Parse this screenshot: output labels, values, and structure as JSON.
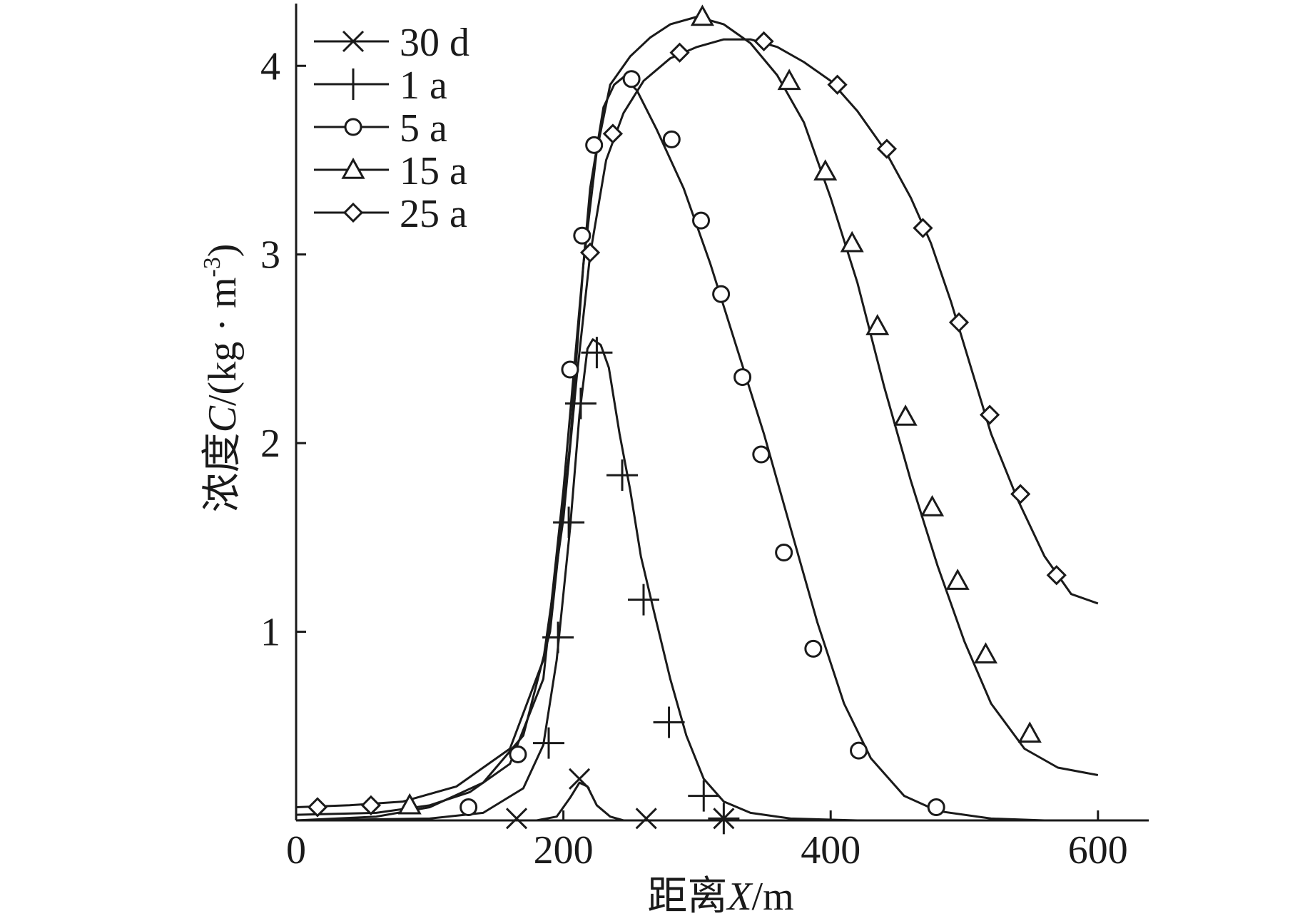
{
  "chart_data": {
    "type": "line",
    "title": "",
    "xlabel_prefix": "距离",
    "xlabel_var": "X",
    "xlabel_unit": "/m",
    "ylabel_prefix": "浓度",
    "ylabel_var": "C",
    "ylabel_unit": "/(kg · m",
    "ylabel_exp": "-3",
    "ylabel_close": ")",
    "xlim": [
      0,
      630
    ],
    "ylim": [
      0,
      4.33
    ],
    "xticks": [
      0,
      200,
      400,
      600
    ],
    "xtick_labels": [
      "0",
      "200",
      "400",
      "600"
    ],
    "yticks": [
      1,
      2,
      3,
      4
    ],
    "ytick_labels": [
      "1",
      "2",
      "3",
      "4"
    ],
    "grid": false,
    "legend_position": "top-left",
    "series": [
      {
        "name": "30 d",
        "marker": "x",
        "line": [
          [
            0,
            0
          ],
          [
            140,
            0
          ],
          [
            180,
            0
          ],
          [
            195,
            0.02
          ],
          [
            205,
            0.12
          ],
          [
            212,
            0.2
          ],
          [
            218,
            0.18
          ],
          [
            225,
            0.08
          ],
          [
            235,
            0.02
          ],
          [
            245,
            0.0
          ],
          [
            300,
            0
          ],
          [
            600,
            0
          ]
        ],
        "markers": [
          [
            165,
            0.01
          ],
          [
            212,
            0.22
          ],
          [
            262,
            0.01
          ],
          [
            320,
            0.01
          ]
        ]
      },
      {
        "name": "1 a",
        "marker": "plus",
        "line": [
          [
            0,
            0
          ],
          [
            100,
            0.01
          ],
          [
            140,
            0.04
          ],
          [
            170,
            0.17
          ],
          [
            185,
            0.4
          ],
          [
            195,
            0.85
          ],
          [
            205,
            1.55
          ],
          [
            212,
            2.15
          ],
          [
            218,
            2.5
          ],
          [
            222,
            2.55
          ],
          [
            228,
            2.52
          ],
          [
            234,
            2.4
          ],
          [
            242,
            2.05
          ],
          [
            250,
            1.75
          ],
          [
            258,
            1.4
          ],
          [
            268,
            1.1
          ],
          [
            280,
            0.75
          ],
          [
            292,
            0.45
          ],
          [
            305,
            0.22
          ],
          [
            320,
            0.1
          ],
          [
            340,
            0.04
          ],
          [
            370,
            0.01
          ],
          [
            420,
            0
          ],
          [
            600,
            0
          ]
        ],
        "markers": [
          [
            189,
            0.41
          ],
          [
            196,
            0.97
          ],
          [
            204,
            1.58
          ],
          [
            213,
            2.21
          ],
          [
            225,
            2.48
          ],
          [
            244,
            1.83
          ],
          [
            260,
            1.17
          ],
          [
            279,
            0.52
          ],
          [
            305,
            0.13
          ],
          [
            320,
            0.01
          ]
        ]
      },
      {
        "name": "5 a",
        "marker": "circle",
        "line": [
          [
            0,
            0.03
          ],
          [
            60,
            0.04
          ],
          [
            100,
            0.08
          ],
          [
            130,
            0.15
          ],
          [
            160,
            0.3
          ],
          [
            185,
            0.75
          ],
          [
            200,
            1.75
          ],
          [
            210,
            2.55
          ],
          [
            220,
            3.35
          ],
          [
            230,
            3.78
          ],
          [
            238,
            3.9
          ],
          [
            245,
            3.94
          ],
          [
            255,
            3.87
          ],
          [
            270,
            3.66
          ],
          [
            290,
            3.35
          ],
          [
            310,
            2.95
          ],
          [
            330,
            2.5
          ],
          [
            350,
            2.05
          ],
          [
            370,
            1.55
          ],
          [
            390,
            1.05
          ],
          [
            410,
            0.62
          ],
          [
            430,
            0.33
          ],
          [
            455,
            0.13
          ],
          [
            480,
            0.05
          ],
          [
            520,
            0.01
          ],
          [
            560,
            0
          ],
          [
            600,
            0
          ]
        ],
        "markers": [
          [
            129,
            0.07
          ],
          [
            166,
            0.35
          ],
          [
            205,
            2.39
          ],
          [
            214,
            3.1
          ],
          [
            223,
            3.58
          ],
          [
            251,
            3.93
          ],
          [
            281,
            3.61
          ],
          [
            303,
            3.18
          ],
          [
            318,
            2.79
          ],
          [
            334,
            2.35
          ],
          [
            348,
            1.94
          ],
          [
            365,
            1.42
          ],
          [
            387,
            0.91
          ],
          [
            421,
            0.37
          ],
          [
            479,
            0.07
          ]
        ]
      },
      {
        "name": "15 a",
        "marker": "triangle",
        "line": [
          [
            0,
            0.0
          ],
          [
            60,
            0.02
          ],
          [
            100,
            0.07
          ],
          [
            140,
            0.2
          ],
          [
            170,
            0.45
          ],
          [
            190,
            1.0
          ],
          [
            205,
            2.0
          ],
          [
            215,
            2.95
          ],
          [
            225,
            3.55
          ],
          [
            235,
            3.9
          ],
          [
            250,
            4.05
          ],
          [
            265,
            4.15
          ],
          [
            280,
            4.22
          ],
          [
            300,
            4.26
          ],
          [
            320,
            4.22
          ],
          [
            340,
            4.12
          ],
          [
            360,
            3.95
          ],
          [
            380,
            3.7
          ],
          [
            400,
            3.3
          ],
          [
            420,
            2.85
          ],
          [
            440,
            2.3
          ],
          [
            460,
            1.8
          ],
          [
            480,
            1.35
          ],
          [
            500,
            0.95
          ],
          [
            520,
            0.62
          ],
          [
            545,
            0.38
          ],
          [
            570,
            0.28
          ],
          [
            600,
            0.24
          ]
        ],
        "markers": [
          [
            85,
            0.08
          ],
          [
            304,
            4.26
          ],
          [
            369,
            3.92
          ],
          [
            396,
            3.44
          ],
          [
            416,
            3.06
          ],
          [
            435,
            2.62
          ],
          [
            456,
            2.14
          ],
          [
            476,
            1.66
          ],
          [
            495,
            1.27
          ],
          [
            516,
            0.88
          ],
          [
            549,
            0.46
          ]
        ]
      },
      {
        "name": "25 a",
        "marker": "diamond",
        "line": [
          [
            0,
            0.07
          ],
          [
            40,
            0.08
          ],
          [
            80,
            0.1
          ],
          [
            120,
            0.18
          ],
          [
            160,
            0.38
          ],
          [
            185,
            0.85
          ],
          [
            200,
            1.6
          ],
          [
            210,
            2.35
          ],
          [
            220,
            3.0
          ],
          [
            232,
            3.5
          ],
          [
            245,
            3.75
          ],
          [
            260,
            3.92
          ],
          [
            280,
            4.04
          ],
          [
            300,
            4.1
          ],
          [
            320,
            4.14
          ],
          [
            340,
            4.14
          ],
          [
            360,
            4.1
          ],
          [
            380,
            4.02
          ],
          [
            400,
            3.92
          ],
          [
            420,
            3.76
          ],
          [
            440,
            3.56
          ],
          [
            460,
            3.3
          ],
          [
            475,
            3.06
          ],
          [
            490,
            2.75
          ],
          [
            505,
            2.4
          ],
          [
            520,
            2.05
          ],
          [
            540,
            1.7
          ],
          [
            560,
            1.4
          ],
          [
            580,
            1.2
          ],
          [
            600,
            1.15
          ]
        ],
        "markers": [
          [
            16,
            0.07
          ],
          [
            56,
            0.08
          ],
          [
            220,
            3.01
          ],
          [
            237,
            3.64
          ],
          [
            287,
            4.07
          ],
          [
            350,
            4.13
          ],
          [
            405,
            3.9
          ],
          [
            442,
            3.56
          ],
          [
            469,
            3.14
          ],
          [
            496,
            2.64
          ],
          [
            519,
            2.15
          ],
          [
            542,
            1.73
          ],
          [
            569,
            1.3
          ]
        ]
      }
    ]
  }
}
